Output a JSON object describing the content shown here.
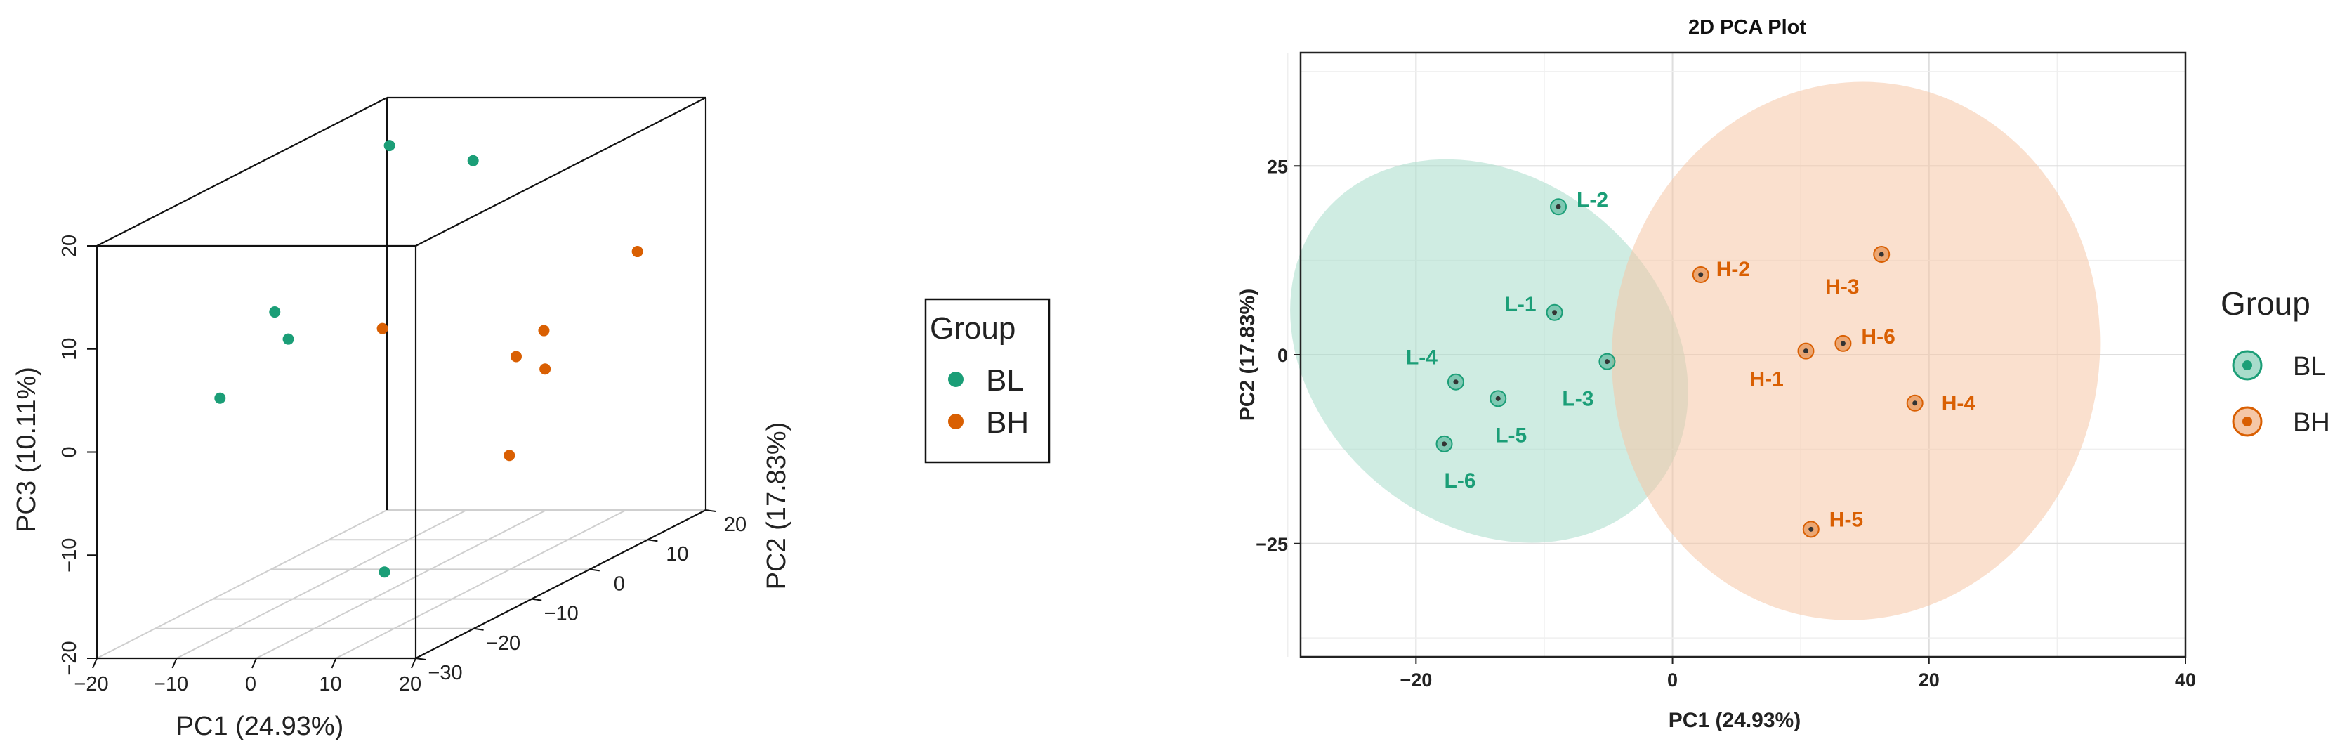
{
  "colors": {
    "BL": "#1b9e77",
    "BH": "#d95f02",
    "BL_ellipse": "#a8dccb",
    "BH_ellipse": "#f5c7a6"
  },
  "chart_data": [
    {
      "type": "scatter",
      "projection": "3d",
      "xlabel": "PC1 (24.93%)",
      "ylabel": "PC2 (17.83%)",
      "zlabel": "PC3 (10.11%)",
      "xlim": [
        -20,
        20
      ],
      "ylim": [
        -30,
        20
      ],
      "zlim": [
        -20,
        20
      ],
      "x_ticks": [
        "−20",
        "−10",
        "0",
        "10",
        "20"
      ],
      "y_ticks": [
        "−30",
        "−20",
        "−10",
        "0",
        "10",
        "20"
      ],
      "z_ticks": [
        "−20",
        "−10",
        "0",
        "10",
        "20"
      ],
      "grid": "floor",
      "series": [
        {
          "name": "BL",
          "color": "#1b9e77",
          "points": [
            {
              "x": -8.9,
              "y": 19.6,
              "z": 14
            },
            {
              "x": -16.9,
              "y": -3.6,
              "z": 6
            },
            {
              "x": -17.8,
              "y": -11.8,
              "z": 0
            },
            {
              "x": -13.6,
              "y": -5.8,
              "z": 4
            },
            {
              "x": -9.2,
              "y": 5.6,
              "z": 19.5
            },
            {
              "x": -5.1,
              "y": -0.9,
              "z": -20
            }
          ]
        },
        {
          "name": "BH",
          "color": "#d95f02",
          "points": [
            {
              "x": 10.4,
              "y": 0.5,
              "z": 0.5
            },
            {
              "x": 2.2,
              "y": 10.6,
              "z": -12
            },
            {
              "x": 16.3,
              "y": 13.3,
              "z": 7
            },
            {
              "x": 18.9,
              "y": -6.4,
              "z": 5
            },
            {
              "x": 10.8,
              "y": -23.1,
              "z": 10
            },
            {
              "x": 13.3,
              "y": 1.5,
              "z": -1
            }
          ]
        }
      ],
      "legend": {
        "title": "Group",
        "placement": "right",
        "entries": [
          "BL",
          "BH"
        ]
      }
    },
    {
      "type": "scatter",
      "title": "2D PCA Plot",
      "xlabel": "PC1  (24.93%)",
      "ylabel": "PC2  (17.83%)",
      "xlim": [
        -29,
        40
      ],
      "ylim": [
        -40,
        40
      ],
      "x_ticks": [
        -20,
        0,
        20,
        40
      ],
      "y_ticks": [
        -25,
        0,
        25
      ],
      "grid": true,
      "series": [
        {
          "name": "BL",
          "color": "#1b9e77",
          "points": [
            {
              "label": "L-1",
              "x": -9.2,
              "y": 5.6
            },
            {
              "label": "L-2",
              "x": -8.9,
              "y": 19.6
            },
            {
              "label": "L-3",
              "x": -5.1,
              "y": -0.9
            },
            {
              "label": "L-4",
              "x": -16.9,
              "y": -3.6
            },
            {
              "label": "L-5",
              "x": -13.6,
              "y": -5.8
            },
            {
              "label": "L-6",
              "x": -17.8,
              "y": -11.8
            }
          ]
        },
        {
          "name": "BH",
          "color": "#d95f02",
          "points": [
            {
              "label": "H-1",
              "x": 10.4,
              "y": 0.5
            },
            {
              "label": "H-2",
              "x": 2.2,
              "y": 10.6
            },
            {
              "label": "H-3",
              "x": 16.3,
              "y": 13.3
            },
            {
              "label": "H-4",
              "x": 18.9,
              "y": -6.4
            },
            {
              "label": "H-5",
              "x": 10.8,
              "y": -23.1
            },
            {
              "label": "H-6",
              "x": 13.3,
              "y": 1.5
            }
          ]
        }
      ],
      "ellipses": [
        {
          "group": "BL",
          "center": [
            -14.3,
            0.5
          ],
          "semi_axes": [
            16.8,
            22.9
          ],
          "angle_deg": 40
        },
        {
          "group": "BH",
          "center": [
            14.3,
            0.5
          ],
          "semi_axes": [
            19.0,
            35.7
          ],
          "angle_deg": 8
        }
      ],
      "legend": {
        "title": "Group",
        "placement": "right",
        "entries": [
          "BL",
          "BH"
        ]
      }
    }
  ]
}
